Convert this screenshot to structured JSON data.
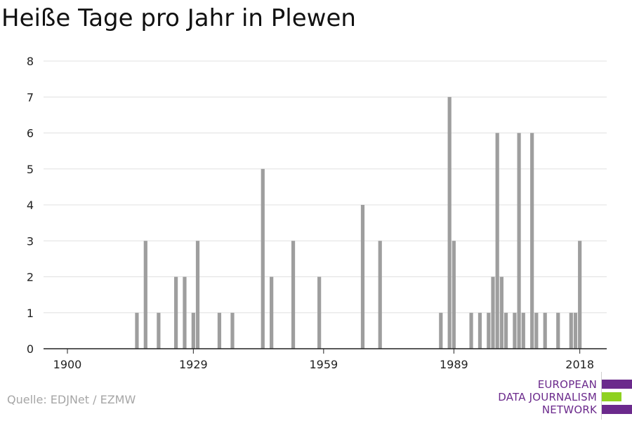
{
  "title": "Heiße Tage pro Jahr in Plewen",
  "source": "Quelle: EDJNet / EZMW",
  "logo": {
    "lines": [
      "EUROPEAN",
      "DATA JOURNALISM",
      "NETWORK"
    ],
    "colors": {
      "purple": "#6b2a8c",
      "green": "#8ed120"
    }
  },
  "colors": {
    "bar": "#9e9e9e",
    "grid": "#e0e0e0",
    "axis": "#222222"
  },
  "chart_data": {
    "type": "bar",
    "title": "Heiße Tage pro Jahr in Plewen",
    "xlabel": "",
    "ylabel": "",
    "xlim": [
      1894,
      2025
    ],
    "ylim": [
      0,
      8
    ],
    "grid": true,
    "x_ticks": [
      1900,
      1929,
      1959,
      1989,
      2018
    ],
    "y_ticks": [
      0,
      1,
      2,
      3,
      4,
      5,
      6,
      7,
      8
    ],
    "x": [
      1916,
      1918,
      1921,
      1925,
      1927,
      1929,
      1930,
      1935,
      1938,
      1945,
      1947,
      1952,
      1958,
      1968,
      1972,
      1986,
      1988,
      1989,
      1993,
      1995,
      1997,
      1998,
      1999,
      2000,
      2001,
      2003,
      2004,
      2005,
      2007,
      2008,
      2010,
      2013,
      2016,
      2017,
      2018
    ],
    "values": [
      1,
      3,
      1,
      2,
      2,
      1,
      3,
      1,
      1,
      5,
      2,
      3,
      2,
      4,
      3,
      1,
      7,
      3,
      1,
      1,
      1,
      2,
      6,
      2,
      1,
      1,
      6,
      1,
      6,
      1,
      1,
      1,
      1,
      1,
      3
    ]
  }
}
